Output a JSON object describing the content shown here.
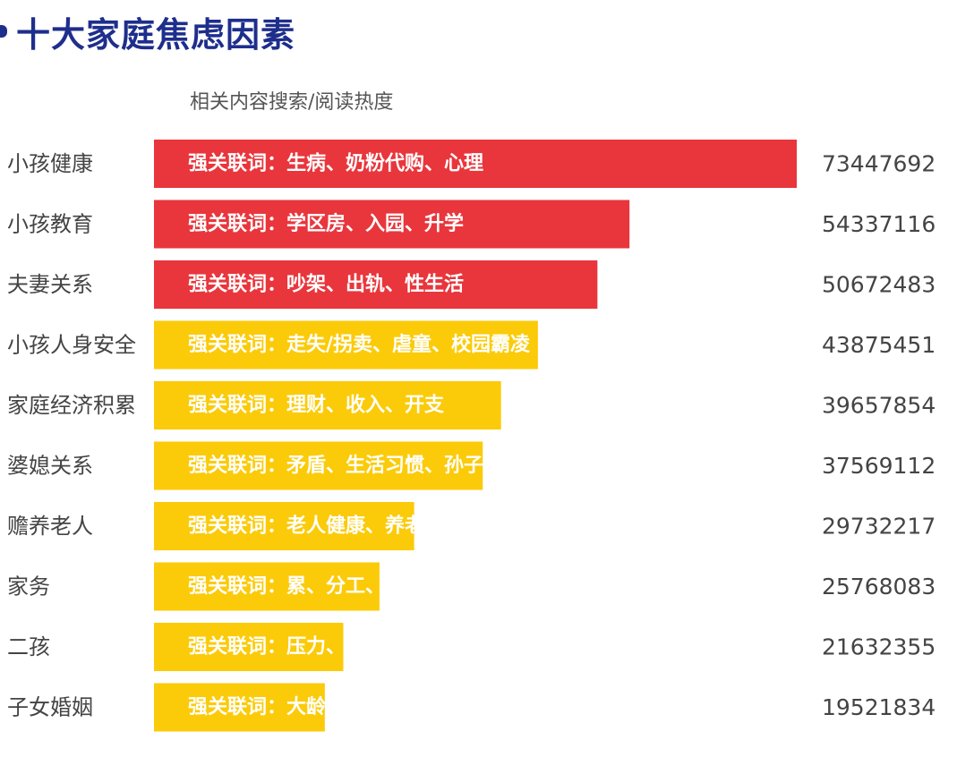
{
  "chart_data": {
    "type": "bar",
    "orientation": "horizontal",
    "title": "十大家庭焦虑因素",
    "subtitle": "相关内容搜索/阅读热度",
    "categories": [
      "小孩健康",
      "小孩教育",
      "夫妻关系",
      "小孩人身安全",
      "家庭经济积累",
      "婆媳关系",
      "赡养老人",
      "家务",
      "二孩",
      "子女婚姻"
    ],
    "values": [
      73447692,
      54337116,
      50672483,
      43875451,
      39657854,
      37569112,
      29732217,
      25768083,
      21632355,
      19521834
    ],
    "bar_labels": [
      "强关联词：生病、奶粉代购、心理",
      "强关联词：学区房、入园、升学",
      "强关联词：吵架、出轨、性生活",
      "强关联词：走失/拐卖、虐童、校园霸凌",
      "强关联词：理财、收入、开支",
      "强关联词：矛盾、生活习惯、孙子教育",
      "强关联词：老人健康、养老院、空巢",
      "强关联词：累、分工、保姆",
      "强关联词：压力、高龄产妇、福利",
      "强关联词：大龄未婚、买房、生子"
    ],
    "bar_colors": [
      "#e8363c",
      "#e8363c",
      "#e8363c",
      "#fbcb0a",
      "#fbcb0a",
      "#fbcb0a",
      "#fbcb0a",
      "#fbcb0a",
      "#fbcb0a",
      "#fbcb0a"
    ],
    "xlabel": "",
    "ylabel": "",
    "grid": false,
    "legend": "none"
  }
}
